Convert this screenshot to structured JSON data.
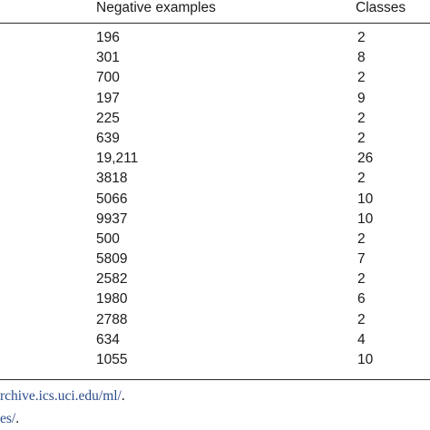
{
  "table": {
    "headers": {
      "negative_examples": "Negative examples",
      "classes": "Classes"
    },
    "rows": [
      {
        "negative_examples": "196",
        "classes": "2"
      },
      {
        "negative_examples": "301",
        "classes": "8"
      },
      {
        "negative_examples": "700",
        "classes": "2"
      },
      {
        "negative_examples": "197",
        "classes": "9"
      },
      {
        "negative_examples": "225",
        "classes": "2"
      },
      {
        "negative_examples": "639",
        "classes": "2"
      },
      {
        "negative_examples": "19,211",
        "classes": "26"
      },
      {
        "negative_examples": "3818",
        "classes": "2"
      },
      {
        "negative_examples": "5066",
        "classes": "10"
      },
      {
        "negative_examples": "9937",
        "classes": "10"
      },
      {
        "negative_examples": "500",
        "classes": "2"
      },
      {
        "negative_examples": "5809",
        "classes": "7"
      },
      {
        "negative_examples": "2582",
        "classes": "2"
      },
      {
        "negative_examples": "1980",
        "classes": "6"
      },
      {
        "negative_examples": "2788",
        "classes": "2"
      },
      {
        "negative_examples": "634",
        "classes": "4"
      },
      {
        "negative_examples": "1055",
        "classes": "10"
      }
    ]
  },
  "footnotes": {
    "first_link": "rchive.ics.uci.edu/ml/",
    "first_suffix": ".",
    "second_link": "es/",
    "second_suffix": "."
  },
  "colors": {
    "text": "#1a1a1a",
    "rule": "#2a2a2a",
    "link": "#2a4a8a"
  }
}
